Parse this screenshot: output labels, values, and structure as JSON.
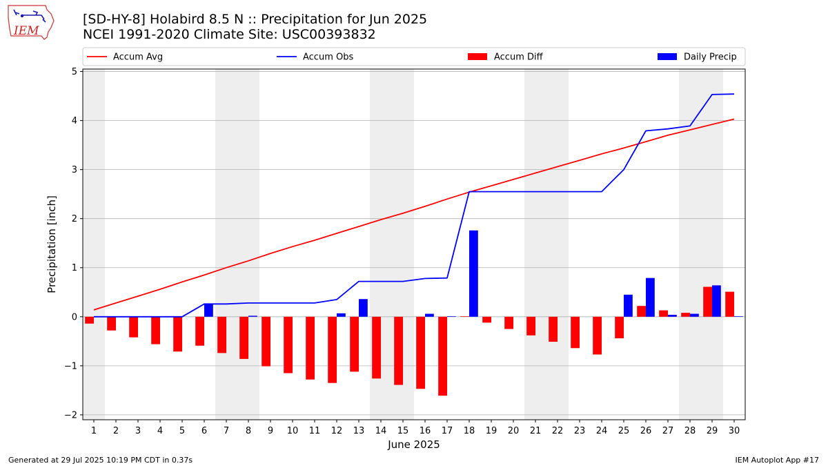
{
  "header": {
    "title_line1": "[SD-HY-8] Holabird 8.5 N :: Precipitation for Jun 2025",
    "title_line2": "NCEI 1991-2020 Climate Site: USC00393832"
  },
  "logo": {
    "text": "IEM",
    "icon": "iowa-state-outline-logo"
  },
  "footer": {
    "generated": "Generated at 29 Jul 2025 10:19 PM CDT in 0.37s",
    "app": "IEM Autoplot App #17"
  },
  "colors": {
    "avg": "#ff0000",
    "obs": "#0000ff",
    "diff": "#ff0000",
    "daily": "#0000ff",
    "weekend_band": "#eeeeee",
    "grid": "#b0b0b0"
  },
  "chart_data": {
    "type": "bar",
    "xlabel": "June 2025",
    "ylabel": "Precipitation [inch]",
    "ylim": [
      -2.1,
      5.05
    ],
    "yticks": [
      -2,
      -1,
      0,
      1,
      2,
      3,
      4,
      5
    ],
    "ytick_labels": [
      "−2",
      "−1",
      "0",
      "1",
      "2",
      "3",
      "4",
      "5"
    ],
    "xlim": [
      0.5,
      30.5
    ],
    "categories": [
      "1",
      "2",
      "3",
      "4",
      "5",
      "6",
      "7",
      "8",
      "9",
      "10",
      "11",
      "12",
      "13",
      "14",
      "15",
      "16",
      "17",
      "18",
      "19",
      "20",
      "21",
      "22",
      "23",
      "24",
      "25",
      "26",
      "27",
      "28",
      "29",
      "30"
    ],
    "grid": "horizontal",
    "legend_placement": "top, above plot",
    "weekend_bands": [
      [
        0.5,
        1.5
      ],
      [
        6.5,
        8.5
      ],
      [
        13.5,
        15.5
      ],
      [
        20.5,
        22.5
      ],
      [
        27.5,
        29.5
      ]
    ],
    "series": [
      {
        "name": "Accum Avg",
        "kind": "line",
        "values": [
          0.14,
          0.28,
          0.42,
          0.56,
          0.71,
          0.85,
          1.0,
          1.14,
          1.29,
          1.43,
          1.56,
          1.7,
          1.84,
          1.98,
          2.11,
          2.25,
          2.4,
          2.54,
          2.67,
          2.8,
          2.93,
          3.06,
          3.19,
          3.32,
          3.44,
          3.57,
          3.7,
          3.81,
          3.92,
          4.03
        ]
      },
      {
        "name": "Accum Obs",
        "kind": "line",
        "values": [
          0.0,
          0.0,
          0.0,
          0.0,
          0.0,
          0.26,
          0.26,
          0.28,
          0.28,
          0.28,
          0.28,
          0.35,
          0.72,
          0.72,
          0.72,
          0.78,
          0.79,
          2.55,
          2.55,
          2.55,
          2.55,
          2.55,
          2.55,
          2.55,
          3.0,
          3.79,
          3.83,
          3.89,
          4.53,
          4.54
        ]
      },
      {
        "name": "Accum Diff",
        "kind": "bar",
        "values": [
          -0.14,
          -0.28,
          -0.42,
          -0.56,
          -0.71,
          -0.59,
          -0.74,
          -0.86,
          -1.01,
          -1.15,
          -1.28,
          -1.35,
          -1.12,
          -1.26,
          -1.39,
          -1.47,
          -1.61,
          0.01,
          -0.12,
          -0.25,
          -0.38,
          -0.51,
          -0.64,
          -0.77,
          -0.44,
          0.22,
          0.13,
          0.08,
          0.61,
          0.51
        ]
      },
      {
        "name": "Daily Precip",
        "kind": "bar",
        "values": [
          0,
          0,
          0,
          0,
          0,
          0.26,
          0,
          0.02,
          0,
          0,
          0,
          0.07,
          0.36,
          0,
          0,
          0.06,
          0.01,
          1.76,
          0,
          0,
          0,
          0,
          0,
          0,
          0.45,
          0.79,
          0.04,
          0.06,
          0.64,
          0.01
        ]
      }
    ]
  }
}
